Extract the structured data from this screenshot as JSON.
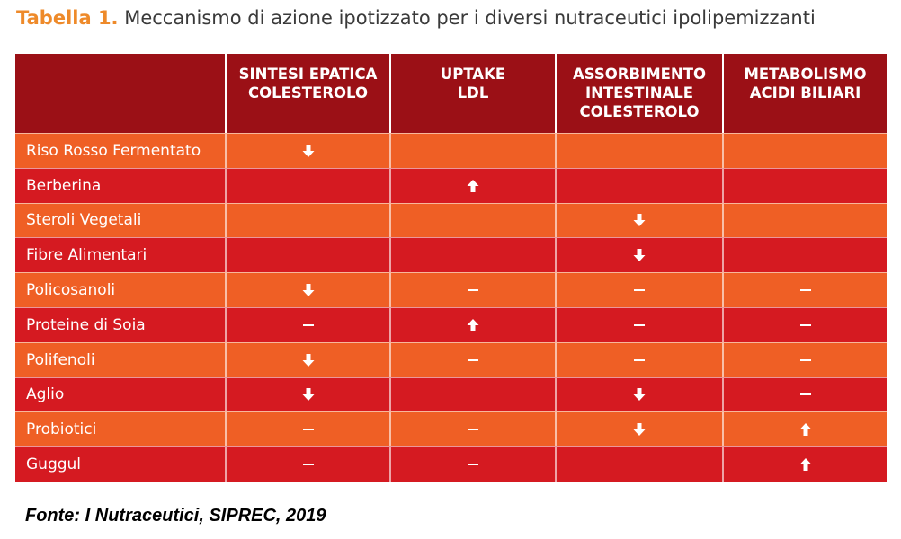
{
  "title": {
    "tag": "Tabella 1.",
    "text": "Meccanismo di azione ipotizzato per i diversi nutraceutici ipolipemizzanti"
  },
  "table": {
    "headers": [
      "",
      "SINTESI EPATICA\nCOLESTEROLO",
      "UPTAKE\nLDL",
      "ASSORBIMENTO\nINTESTINALE\nCOLESTEROLO",
      "METABOLISMO\nACIDI BILIARI"
    ],
    "rows": [
      {
        "name": "Riso Rosso Fermentato",
        "cells": [
          "down",
          "",
          "",
          ""
        ]
      },
      {
        "name": "Berberina",
        "cells": [
          "",
          "up",
          "",
          ""
        ]
      },
      {
        "name": "Steroli Vegetali",
        "cells": [
          "",
          "",
          "down",
          ""
        ]
      },
      {
        "name": "Fibre Alimentari",
        "cells": [
          "",
          "",
          "down",
          ""
        ]
      },
      {
        "name": "Policosanoli",
        "cells": [
          "down",
          "dash",
          "dash",
          "dash"
        ]
      },
      {
        "name": "Proteine di Soia",
        "cells": [
          "dash",
          "up",
          "dash",
          "dash"
        ]
      },
      {
        "name": "Polifenoli",
        "cells": [
          "down",
          "dash",
          "dash",
          "dash"
        ]
      },
      {
        "name": "Aglio",
        "cells": [
          "down",
          "",
          "down",
          "dash"
        ]
      },
      {
        "name": "Probiotici",
        "cells": [
          "dash",
          "dash",
          "down",
          "up"
        ]
      },
      {
        "name": "Guggul",
        "cells": [
          "dash",
          "dash",
          "",
          "up"
        ]
      }
    ]
  },
  "symbols": {
    "down": "arrow-down-icon",
    "up": "arrow-up-icon",
    "dash": "dash-icon"
  },
  "colors": {
    "header": "#9b1016",
    "row_odd": "#ef5f25",
    "row_even": "#d51a21",
    "title_tag": "#ee8a2a"
  },
  "source": "Fonte: I Nutraceutici, SIPREC, 2019"
}
